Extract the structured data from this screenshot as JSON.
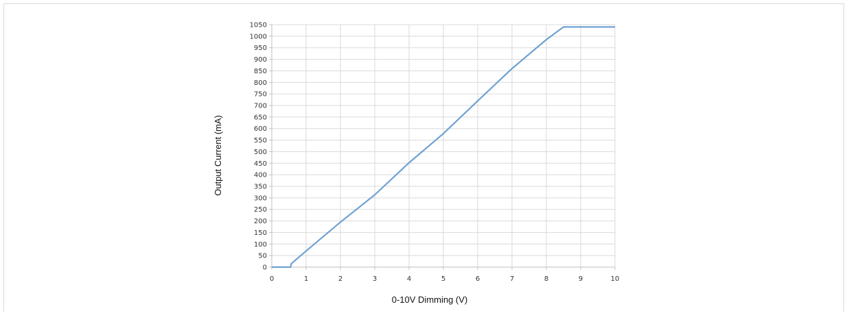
{
  "chart_data": {
    "type": "line",
    "title": "",
    "xlabel": "0-10V Dimming (V)",
    "ylabel": "Output Current (mA)",
    "xlim": [
      0,
      10
    ],
    "ylim": [
      0,
      1050
    ],
    "x_ticks": [
      0,
      1,
      2,
      3,
      4,
      5,
      6,
      7,
      8,
      9,
      10
    ],
    "y_ticks": [
      0,
      50,
      100,
      150,
      200,
      250,
      300,
      350,
      400,
      450,
      500,
      550,
      600,
      650,
      700,
      750,
      800,
      850,
      900,
      950,
      1000,
      1050
    ],
    "grid": true,
    "legend": "none",
    "series": [
      {
        "color": "#6fa1d2",
        "x": [
          0,
          0.55,
          0.57,
          1,
          2,
          3,
          4,
          5,
          6,
          7,
          8,
          8.5,
          9,
          10
        ],
        "y": [
          0,
          0,
          15,
          70,
          195,
          313,
          452,
          578,
          720,
          860,
          985,
          1040,
          1040,
          1040
        ]
      }
    ]
  }
}
